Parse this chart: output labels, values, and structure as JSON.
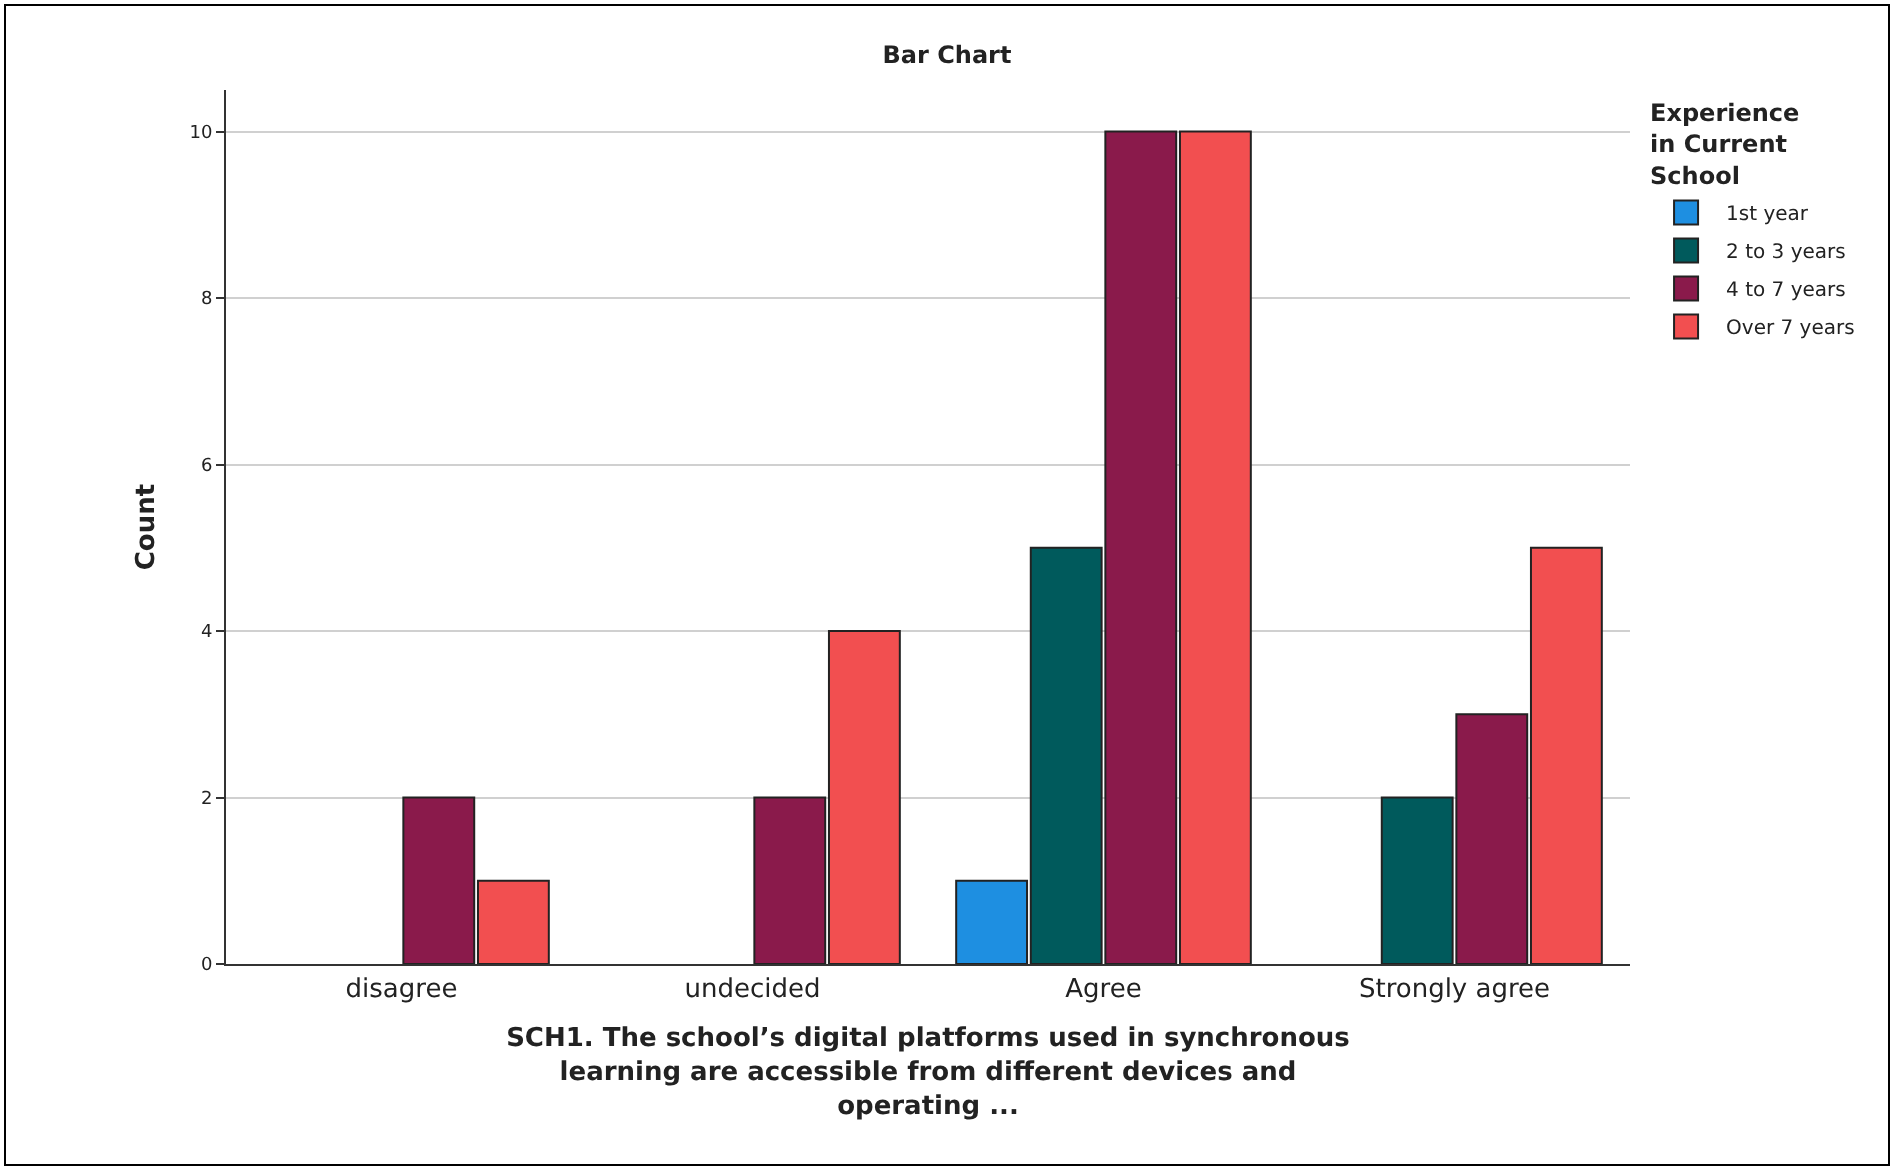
{
  "chart_data": {
    "type": "bar",
    "title": "Bar Chart",
    "xlabel": "SCH1. The school’s digital platforms used in synchronous learning are accessible from different devices and operating ...",
    "ylabel": "Count",
    "legend_title": "Experience in Current School",
    "categories": [
      "disagree",
      "undecided",
      "Agree",
      "Strongly agree"
    ],
    "series": [
      {
        "name": "1st year",
        "color": "#1e8fe1",
        "values": [
          null,
          null,
          1,
          null
        ]
      },
      {
        "name": "2 to 3 years",
        "color": "#005a5c",
        "values": [
          null,
          null,
          5,
          2
        ]
      },
      {
        "name": "4 to 7 years",
        "color": "#8a1a4b",
        "values": [
          2,
          2,
          10,
          3
        ]
      },
      {
        "name": "Over 7 years",
        "color": "#f24f50",
        "values": [
          1,
          4,
          10,
          5
        ]
      }
    ],
    "ylim": [
      0,
      10.5
    ],
    "yticks": [
      0,
      2,
      4,
      6,
      8,
      10
    ],
    "grid": "y",
    "legend": "top right"
  }
}
